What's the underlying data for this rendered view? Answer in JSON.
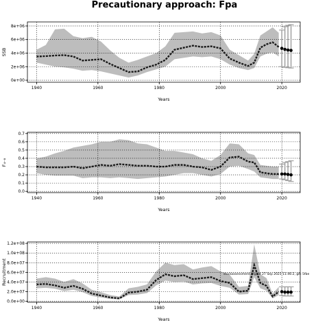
{
  "title": "Precautionary approach: Fpa",
  "annotation": "stockassessment.org, at 27 Sep 2021 11:46:2, git: 5fbe",
  "colors": {
    "band": "#bdbdbd",
    "line": "#1a1a1a",
    "grid": "#000000"
  },
  "chart_data": [
    {
      "type": "line",
      "ylabel": "SSB",
      "xlabel": "Years",
      "xlim": [
        1937,
        2026
      ],
      "ylim": [
        -300000,
        8600000
      ],
      "xticks": [
        1940,
        1960,
        1980,
        2000,
        2020
      ],
      "yticks": [
        0,
        2000000,
        4000000,
        6000000,
        8000000
      ],
      "ytick_labels": [
        "0e+00",
        "2e+06",
        "4e+06",
        "6e+06",
        "8e+06"
      ],
      "x": [
        1940,
        1943,
        1946,
        1949,
        1952,
        1955,
        1958,
        1961,
        1964,
        1967,
        1970,
        1973,
        1976,
        1979,
        1982,
        1985,
        1988,
        1991,
        1994,
        1997,
        2000,
        2003,
        2006,
        2009,
        2011,
        2013,
        2015,
        2017,
        2019
      ],
      "y": [
        3500000,
        3550000,
        3650000,
        3700000,
        3500000,
        2900000,
        3000000,
        3100000,
        2400000,
        1800000,
        1200000,
        1300000,
        1900000,
        2300000,
        3000000,
        4500000,
        4800000,
        5100000,
        4900000,
        5000000,
        4700000,
        3200000,
        2600000,
        2100000,
        2600000,
        4800000,
        5300000,
        5600000,
        4900000
      ],
      "lower": [
        2600000,
        2300000,
        2000000,
        1900000,
        1700000,
        1400000,
        1500000,
        1300000,
        1000000,
        700000,
        400000,
        700000,
        1200000,
        1600000,
        2000000,
        3100000,
        3300000,
        3500000,
        3400000,
        3500000,
        3100000,
        2300000,
        1800000,
        1500000,
        1800000,
        3500000,
        3900000,
        4100000,
        3500000
      ],
      "upper": [
        4500000,
        5200000,
        7500000,
        7600000,
        6500000,
        6200000,
        6400000,
        5700000,
        4400000,
        3300000,
        2600000,
        3000000,
        3500000,
        4000000,
        5000000,
        7000000,
        7100000,
        7200000,
        6900000,
        7100000,
        6600000,
        4500000,
        3700000,
        2900000,
        3900000,
        6600000,
        7200000,
        7800000,
        7000000
      ],
      "points": {
        "x": [
          2020,
          2021,
          2022,
          2023
        ],
        "y": [
          4700000,
          4550000,
          4450000,
          4400000
        ]
      },
      "whiskers": {
        "x": [
          2020,
          2021,
          2022,
          2023
        ],
        "low": [
          2000000,
          1900000,
          1850000,
          1800000
        ],
        "high": [
          7400000,
          7900000,
          8100000,
          8200000
        ]
      }
    },
    {
      "type": "line",
      "ylabel": "F₄₋₈",
      "xlabel": "Years",
      "xlim": [
        1937,
        2026
      ],
      "ylim": [
        -0.015,
        0.715
      ],
      "xticks": [
        1940,
        1960,
        1980,
        2000,
        2020
      ],
      "yticks": [
        0.0,
        0.1,
        0.2,
        0.3,
        0.4,
        0.5,
        0.6,
        0.7
      ],
      "ytick_labels": [
        "0.0",
        "0.1",
        "0.2",
        "0.3",
        "0.4",
        "0.5",
        "0.6",
        "0.7"
      ],
      "x": [
        1940,
        1943,
        1946,
        1949,
        1952,
        1955,
        1958,
        1961,
        1964,
        1967,
        1970,
        1973,
        1976,
        1979,
        1982,
        1985,
        1988,
        1991,
        1994,
        1997,
        2000,
        2003,
        2006,
        2009,
        2011,
        2013,
        2015,
        2017,
        2019
      ],
      "y": [
        0.3,
        0.29,
        0.29,
        0.29,
        0.3,
        0.28,
        0.3,
        0.32,
        0.31,
        0.33,
        0.32,
        0.31,
        0.31,
        0.3,
        0.3,
        0.32,
        0.32,
        0.3,
        0.29,
        0.26,
        0.3,
        0.41,
        0.42,
        0.36,
        0.35,
        0.23,
        0.22,
        0.21,
        0.21
      ],
      "lower": [
        0.22,
        0.2,
        0.19,
        0.19,
        0.19,
        0.16,
        0.17,
        0.17,
        0.16,
        0.17,
        0.16,
        0.15,
        0.16,
        0.17,
        0.18,
        0.2,
        0.22,
        0.22,
        0.2,
        0.18,
        0.21,
        0.3,
        0.31,
        0.27,
        0.24,
        0.17,
        0.16,
        0.15,
        0.15
      ],
      "upper": [
        0.4,
        0.42,
        0.46,
        0.49,
        0.53,
        0.55,
        0.57,
        0.6,
        0.6,
        0.63,
        0.62,
        0.58,
        0.57,
        0.53,
        0.49,
        0.49,
        0.47,
        0.45,
        0.4,
        0.37,
        0.44,
        0.58,
        0.57,
        0.46,
        0.44,
        0.32,
        0.31,
        0.3,
        0.3
      ],
      "points": {
        "x": [
          2020,
          2021,
          2022,
          2023
        ],
        "y": [
          0.21,
          0.21,
          0.205,
          0.2
        ]
      },
      "whiskers": {
        "x": [
          2020,
          2021,
          2022,
          2023
        ],
        "low": [
          0.15,
          0.14,
          0.13,
          0.12
        ],
        "high": [
          0.33,
          0.35,
          0.36,
          0.37
        ]
      }
    },
    {
      "type": "line",
      "ylabel": "Recruitment",
      "xlabel": "Years",
      "xlim": [
        1937,
        2026
      ],
      "ylim": [
        -2000000,
        123000000
      ],
      "xticks": [
        1940,
        1960,
        1980,
        2000,
        2020
      ],
      "yticks": [
        0,
        20000000,
        40000000,
        60000000,
        80000000,
        100000000,
        120000000
      ],
      "ytick_labels": [
        "0.0e+00",
        "2.0e+07",
        "4.0e+07",
        "6.0e+07",
        "8.0e+07",
        "1.0e+08",
        "1.2e+08"
      ],
      "x": [
        1940,
        1943,
        1946,
        1949,
        1952,
        1955,
        1958,
        1961,
        1964,
        1967,
        1970,
        1973,
        1976,
        1979,
        1982,
        1985,
        1988,
        1991,
        1994,
        1997,
        2000,
        2003,
        2006,
        2009,
        2011,
        2013,
        2015,
        2017,
        2019
      ],
      "y": [
        35000000,
        36000000,
        33000000,
        28000000,
        32000000,
        26000000,
        16000000,
        12000000,
        8000000,
        6000000,
        18000000,
        20000000,
        24000000,
        44000000,
        56000000,
        52000000,
        54000000,
        46000000,
        48000000,
        50000000,
        42000000,
        38000000,
        20000000,
        22000000,
        75000000,
        38000000,
        32000000,
        10000000,
        20000000
      ],
      "lower": [
        27000000,
        28000000,
        26000000,
        21000000,
        24000000,
        19000000,
        11000000,
        8000000,
        5000000,
        4000000,
        13000000,
        14000000,
        17000000,
        33000000,
        43000000,
        40000000,
        41000000,
        35000000,
        37000000,
        38000000,
        32000000,
        28000000,
        14000000,
        15000000,
        50000000,
        27000000,
        22000000,
        6000000,
        13000000
      ],
      "upper": [
        47000000,
        50000000,
        47000000,
        40000000,
        46000000,
        37000000,
        24000000,
        19000000,
        13000000,
        10000000,
        27000000,
        30000000,
        35000000,
        62000000,
        80000000,
        75000000,
        77000000,
        66000000,
        70000000,
        73000000,
        62000000,
        55000000,
        30000000,
        32000000,
        118000000,
        56000000,
        48000000,
        16000000,
        30000000
      ],
      "points": {
        "x": [
          2020,
          2021,
          2022,
          2023
        ],
        "y": [
          20000000,
          19000000,
          19000000,
          19000000
        ]
      },
      "whiskers": {
        "x": [
          2020,
          2021,
          2022,
          2023
        ],
        "low": [
          12000000,
          11000000,
          11000000,
          11000000
        ],
        "high": [
          30000000,
          30000000,
          30000000,
          30000000
        ]
      }
    }
  ]
}
